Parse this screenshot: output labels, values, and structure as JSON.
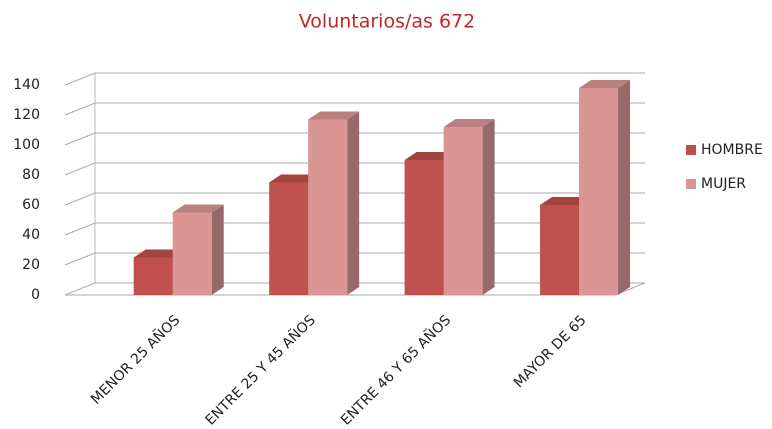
{
  "chart_data": {
    "type": "bar3d",
    "title": "Voluntarios/as 672",
    "categories": [
      "MENOR 25 AÑOS",
      "ENTRE 25 Y 45 AÑOS",
      "ENTRE 46 Y 65 AÑOS",
      "MAYOR DE 65"
    ],
    "series": [
      {
        "name": "HOMBRE",
        "color": "#c0504d",
        "values": [
          25,
          75,
          90,
          60
        ]
      },
      {
        "name": "MUJER",
        "color": "#d99694",
        "values": [
          55,
          117,
          112,
          138
        ]
      }
    ],
    "ylim": [
      0,
      140
    ],
    "yticks": [
      0,
      20,
      40,
      60,
      80,
      100,
      120,
      140
    ],
    "grid": true,
    "legend": "right"
  }
}
